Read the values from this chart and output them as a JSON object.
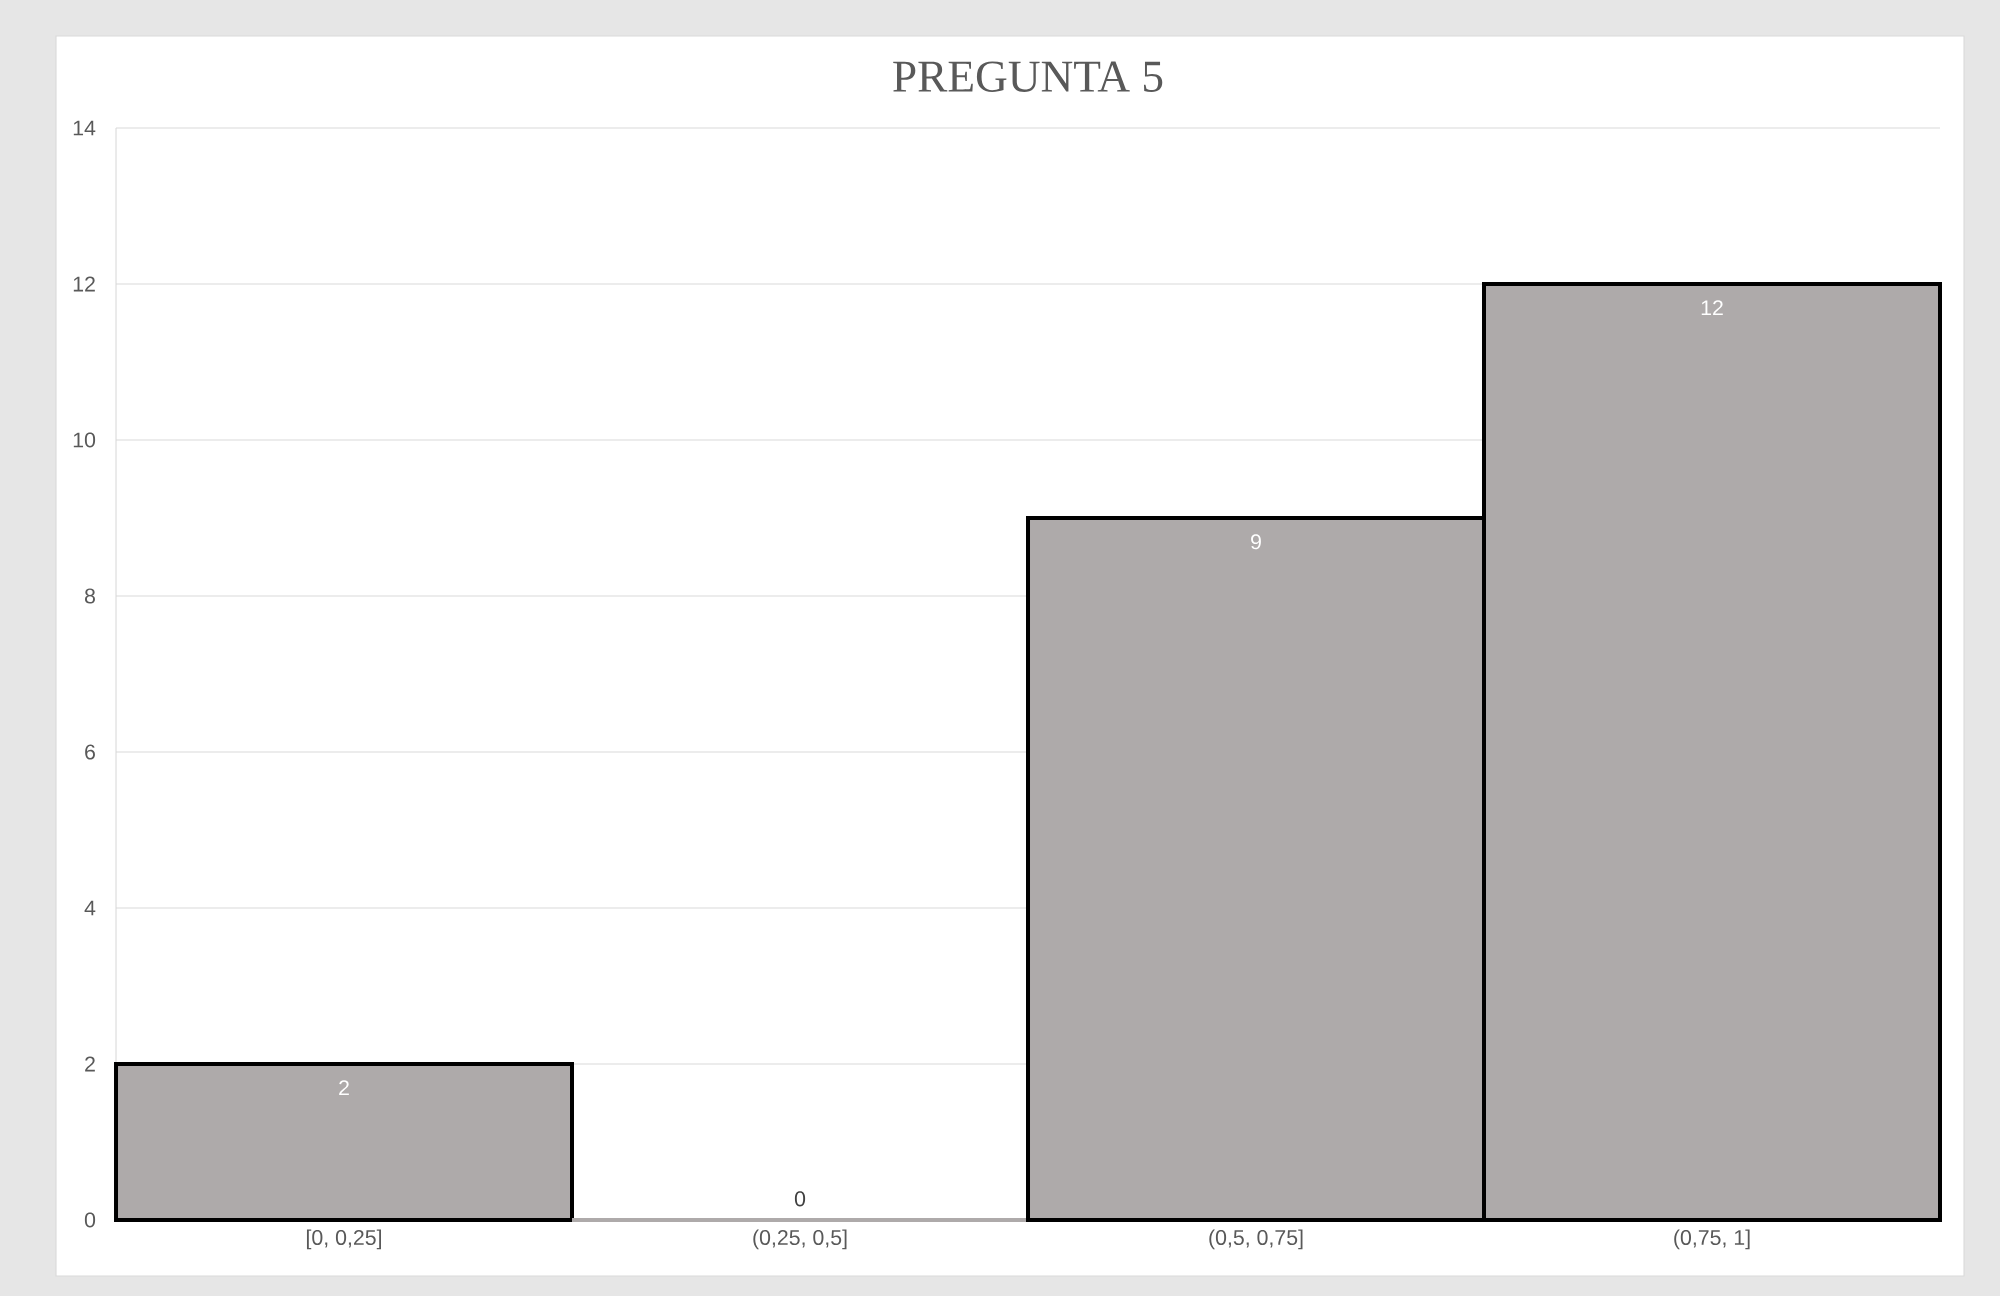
{
  "chart_data": {
    "type": "bar",
    "title": "PREGUNTA 5",
    "categories": [
      "[0, 0,25]",
      "(0,25, 0,5]",
      "(0,5, 0,75]",
      "(0,75, 1]"
    ],
    "values": [
      2,
      0,
      9,
      12
    ],
    "color": "#aeaaaa",
    "ylim": [
      0,
      14
    ],
    "yticks": [
      0,
      2,
      4,
      6,
      8,
      10,
      12,
      14
    ],
    "grid": "y",
    "data_labels": true
  }
}
